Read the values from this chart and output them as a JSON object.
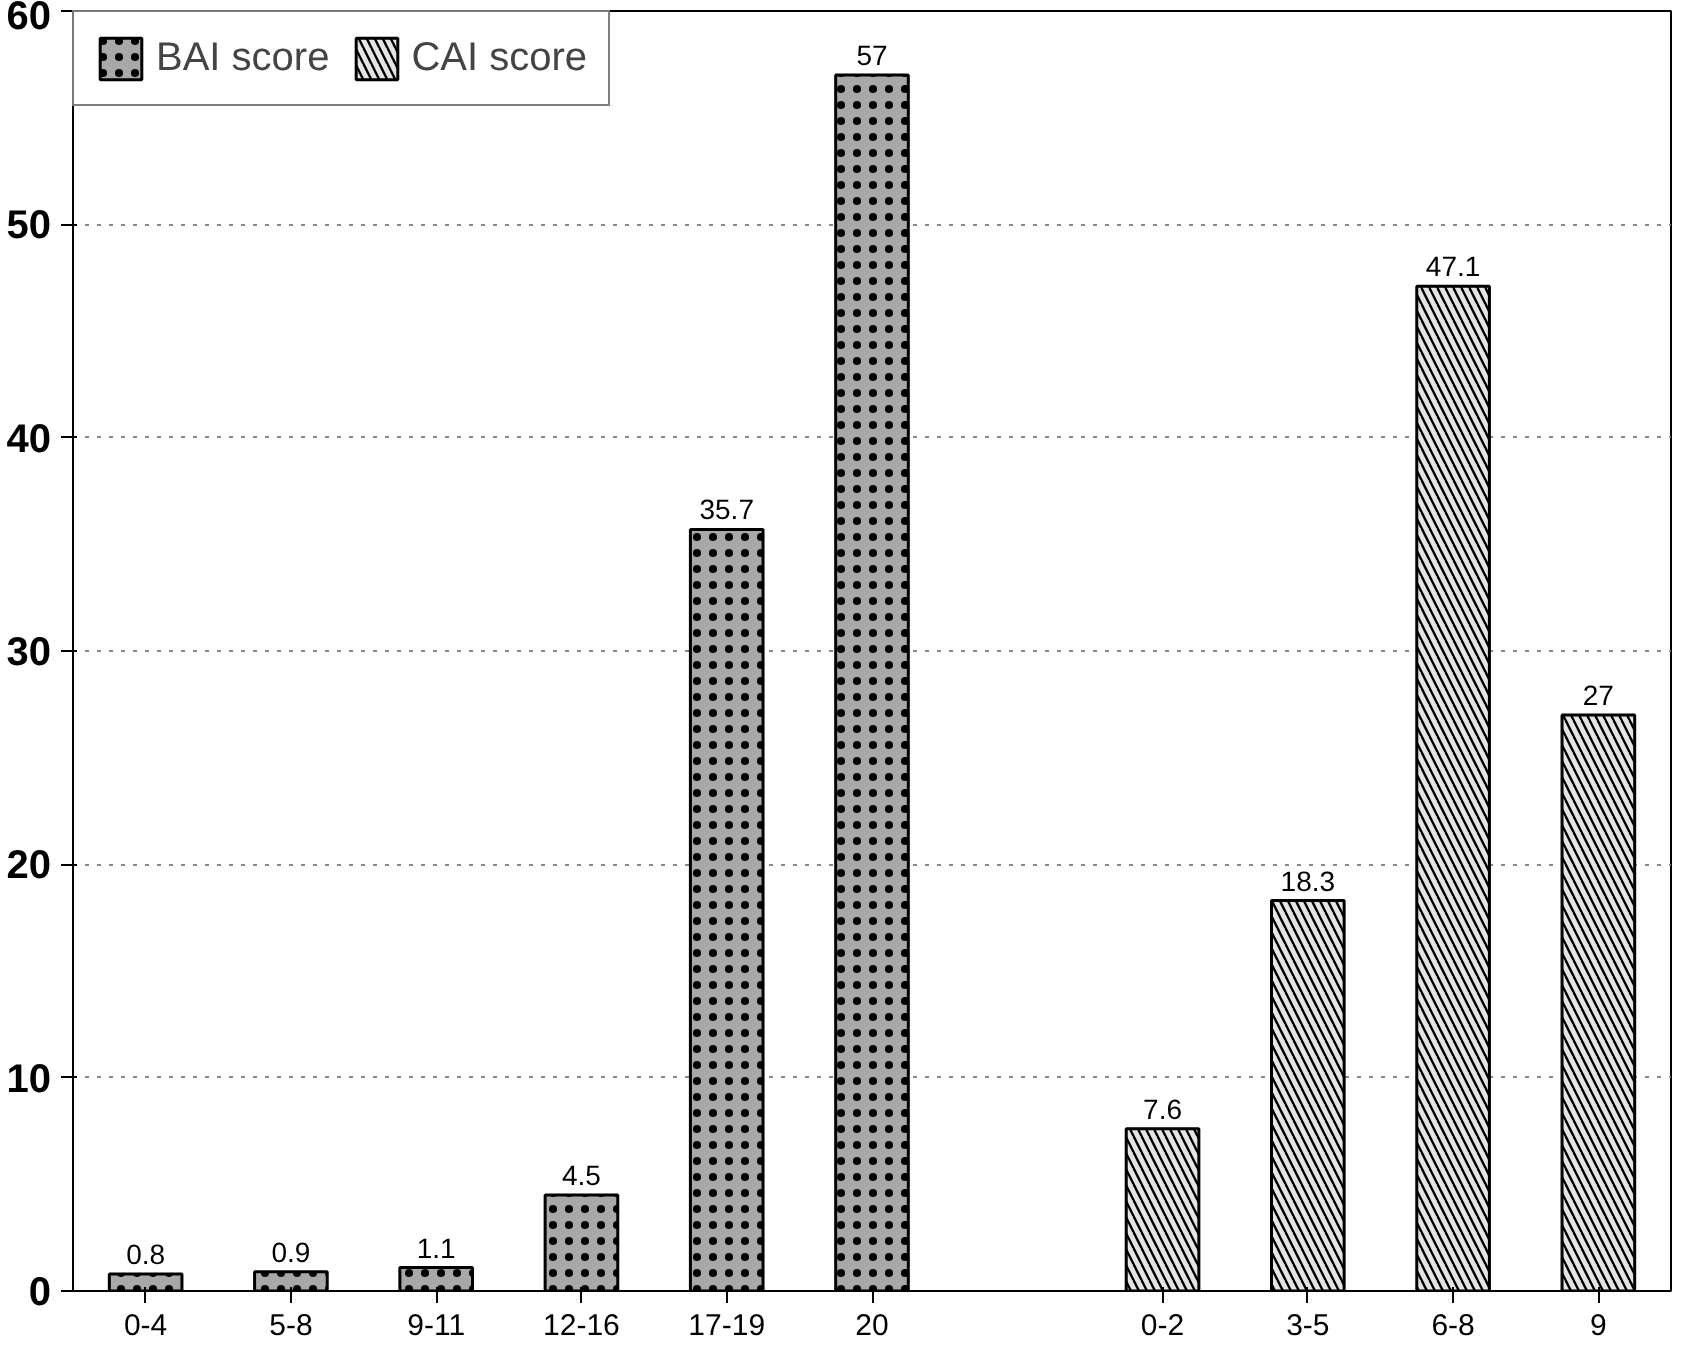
{
  "chart_data": {
    "type": "bar",
    "categories": [
      "0-4",
      "5-8",
      "9-11",
      "12-16",
      "17-19",
      "20",
      null,
      "0-2",
      "3-5",
      "6-8",
      "9"
    ],
    "series": [
      {
        "name": "BAI score",
        "color": "#a8a8a8",
        "values": [
          0.8,
          0.9,
          1.1,
          4.5,
          35.7,
          57,
          null,
          null,
          null,
          null,
          null
        ]
      },
      {
        "name": "CAI score",
        "color": "#e4e4e4",
        "values": [
          null,
          null,
          null,
          null,
          null,
          null,
          null,
          7.6,
          18.3,
          47.1,
          27
        ]
      }
    ],
    "ylim": [
      0,
      60
    ],
    "yticks": [
      0,
      10,
      20,
      30,
      40,
      50,
      60
    ],
    "grid": "y",
    "legend": "top left",
    "data_labels": true
  }
}
